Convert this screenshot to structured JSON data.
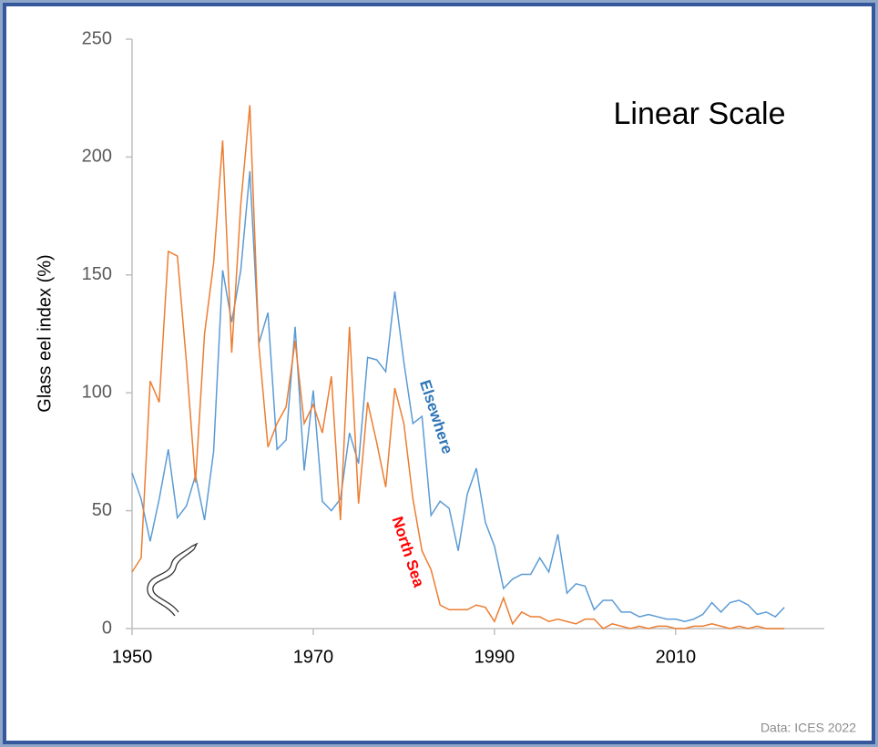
{
  "chart_data": {
    "type": "line",
    "title": "Linear Scale",
    "y_label": "Glass eel index (%)",
    "source": "Data: ICES 2022",
    "x": [
      1950,
      1951,
      1952,
      1953,
      1954,
      1955,
      1956,
      1957,
      1958,
      1959,
      1960,
      1961,
      1962,
      1963,
      1964,
      1965,
      1966,
      1967,
      1968,
      1969,
      1970,
      1971,
      1972,
      1973,
      1974,
      1975,
      1976,
      1977,
      1978,
      1979,
      1980,
      1981,
      1982,
      1983,
      1984,
      1985,
      1986,
      1987,
      1988,
      1989,
      1990,
      1991,
      1992,
      1993,
      1994,
      1995,
      1996,
      1997,
      1998,
      1999,
      2000,
      2001,
      2002,
      2003,
      2004,
      2005,
      2006,
      2007,
      2008,
      2009,
      2010,
      2011,
      2012,
      2013,
      2014,
      2015,
      2016,
      2017,
      2018,
      2019,
      2020,
      2021,
      2022
    ],
    "series": [
      {
        "name": "Elsewhere",
        "color": "#5b9bd5",
        "label_color": "#2e75b6",
        "values": [
          66,
          55,
          37,
          55,
          76,
          47,
          52,
          65,
          46,
          75,
          152,
          130,
          152,
          194,
          121,
          134,
          76,
          80,
          128,
          67,
          101,
          54,
          50,
          55,
          83,
          70,
          115,
          114,
          109,
          143,
          113,
          87,
          90,
          48,
          54,
          51,
          33,
          57,
          68,
          45,
          35,
          17,
          21,
          23,
          23,
          30,
          24,
          40,
          15,
          19,
          18,
          8,
          12,
          12,
          7,
          7,
          5,
          6,
          5,
          4,
          4,
          3,
          4,
          6,
          11,
          7,
          11,
          12,
          10,
          6,
          7,
          5,
          9
        ]
      },
      {
        "name": "North Sea",
        "color": "#ed7d31",
        "label_color": "#ff0000",
        "values": [
          24,
          30,
          105,
          96,
          160,
          158,
          113,
          62,
          125,
          155,
          207,
          117,
          180,
          222,
          120,
          77,
          87,
          94,
          122,
          87,
          95,
          83,
          107,
          46,
          128,
          53,
          96,
          79,
          60,
          102,
          87,
          55,
          33,
          25,
          10,
          8,
          8,
          8,
          10,
          9,
          3,
          13,
          2,
          7,
          5,
          5,
          3,
          4,
          3,
          2,
          4,
          4,
          0,
          2,
          1,
          0,
          1,
          0,
          1,
          1,
          0,
          0,
          1,
          1,
          2,
          1,
          0,
          1,
          0,
          1,
          0,
          0,
          0
        ]
      }
    ],
    "xlim": [
      1950,
      2026
    ],
    "xticks": [
      1950,
      1970,
      1990,
      2010
    ],
    "ylim": [
      0,
      250
    ],
    "yticks": [
      0,
      50,
      100,
      150,
      200,
      250
    ]
  }
}
